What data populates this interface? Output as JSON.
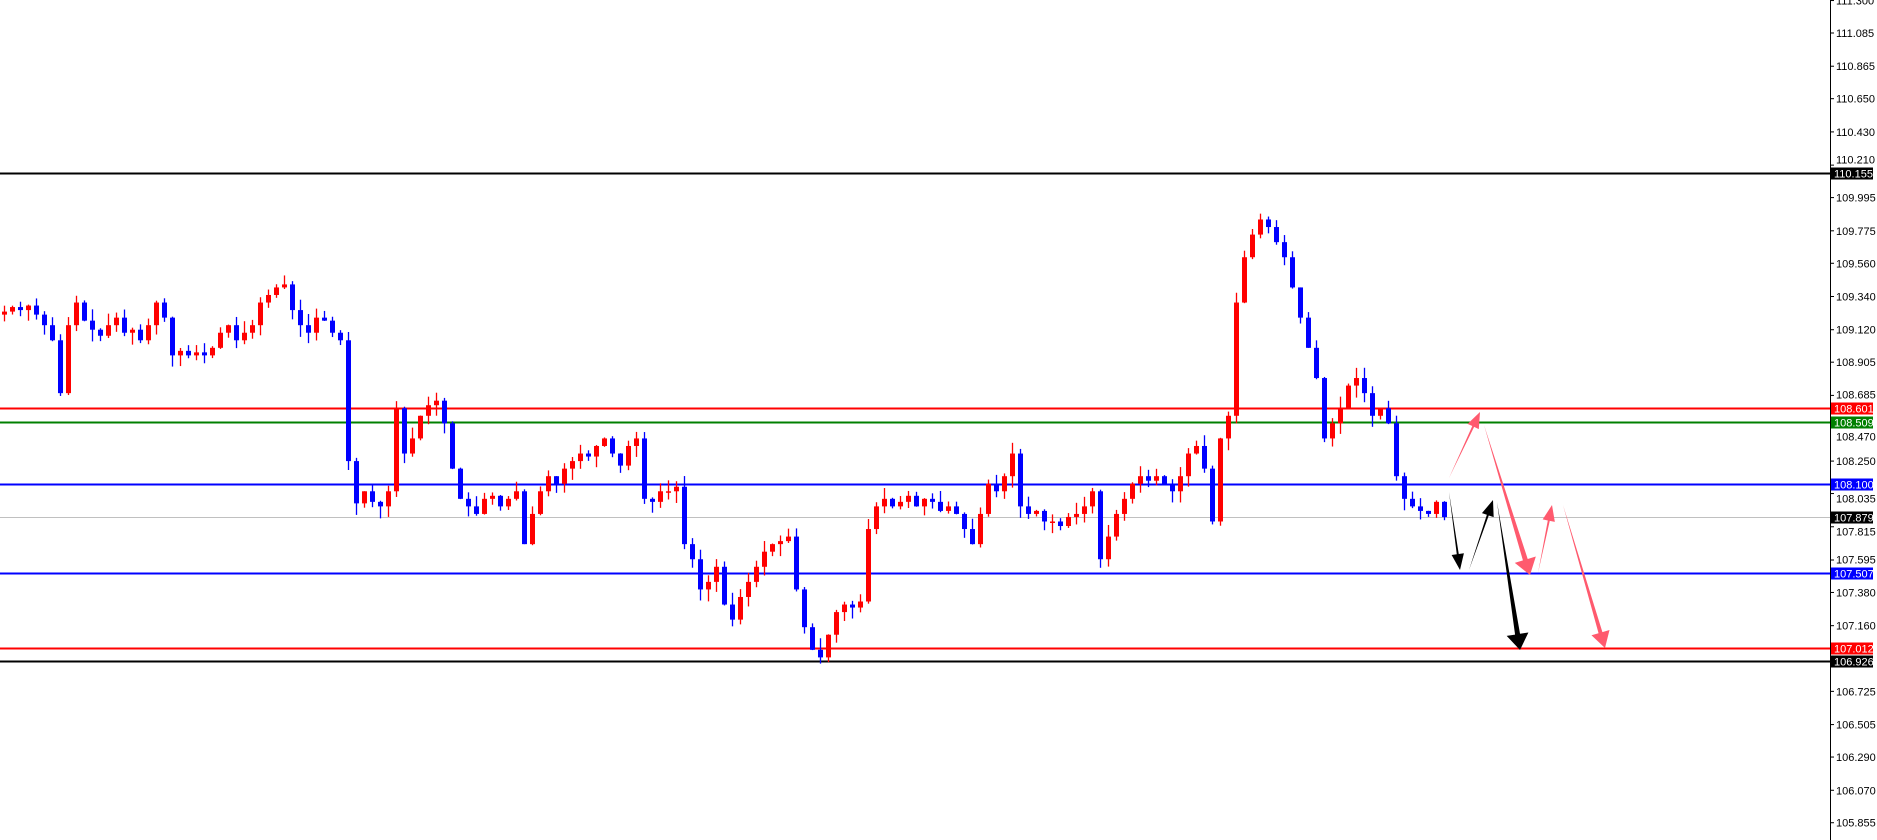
{
  "chart_data": {
    "type": "candlestick",
    "title": "",
    "colors": {
      "bull": "#ff0000",
      "bear": "#0000ff",
      "background": "#ffffff",
      "axis": "#000000"
    },
    "ylim": [
      105.75,
      111.3
    ],
    "y_ticks": [
      "111.300",
      "111.085",
      "110.865",
      "110.650",
      "110.430",
      "110.210",
      "109.995",
      "109.775",
      "109.560",
      "109.340",
      "109.120",
      "108.905",
      "108.685",
      "108.470",
      "108.250",
      "108.035",
      "107.815",
      "107.595",
      "107.380",
      "107.160",
      "106.725",
      "106.505",
      "106.290",
      "106.070",
      "105.855"
    ],
    "closes": [
      109.24,
      109.27,
      109.25,
      109.28,
      109.22,
      109.15,
      109.05,
      108.7,
      109.15,
      109.3,
      109.18,
      109.12,
      109.08,
      109.15,
      109.2,
      109.1,
      109.12,
      109.05,
      109.15,
      109.3,
      109.2,
      108.95,
      108.98,
      108.95,
      108.97,
      108.95,
      109.0,
      109.1,
      109.15,
      109.05,
      109.1,
      109.15,
      109.3,
      109.35,
      109.4,
      109.42,
      109.25,
      109.15,
      109.1,
      109.2,
      109.18,
      109.1,
      109.05,
      108.25,
      107.97,
      108.05,
      107.98,
      107.95,
      108.05,
      108.6,
      108.3,
      108.4,
      108.55,
      108.62,
      108.65,
      108.5,
      108.2,
      108.0,
      107.95,
      107.9,
      108.0,
      108.02,
      107.95,
      108.0,
      108.05,
      107.7,
      107.9,
      108.05,
      108.15,
      108.1,
      108.2,
      108.25,
      108.3,
      108.28,
      108.35,
      108.4,
      108.3,
      108.22,
      108.35,
      108.4,
      108.0,
      107.98,
      108.05,
      108.05,
      108.08,
      107.7,
      107.6,
      107.4,
      107.45,
      107.55,
      107.3,
      107.2,
      107.35,
      107.45,
      107.55,
      107.65,
      107.7,
      107.72,
      107.75,
      107.4,
      107.15,
      107.0,
      106.95,
      107.1,
      107.25,
      107.3,
      107.28,
      107.32,
      107.8,
      107.95,
      108.0,
      107.95,
      107.98,
      108.02,
      107.95,
      108.0,
      107.98,
      107.92,
      107.95,
      107.9,
      107.8,
      107.7,
      107.9,
      108.1,
      108.05,
      108.15,
      108.3,
      107.95,
      107.9,
      107.92,
      107.85,
      107.85,
      107.82,
      107.88,
      107.9,
      107.95,
      108.05,
      107.6,
      107.75,
      107.9,
      108.0,
      108.1,
      108.15,
      108.12,
      108.15,
      108.1,
      108.05,
      108.15,
      108.3,
      108.35,
      108.2,
      107.85,
      108.4,
      108.55,
      109.3,
      109.6,
      109.75,
      109.85,
      109.8,
      109.7,
      109.6,
      109.4,
      109.2,
      109.0,
      108.8,
      108.4,
      108.5,
      108.6,
      108.75,
      108.8,
      108.7,
      108.55,
      108.6,
      108.5,
      108.15,
      108.0,
      107.95,
      107.92,
      107.9,
      107.98,
      107.879
    ],
    "levels": [
      {
        "price": 110.155,
        "label": "110.155",
        "color": "#000000"
      },
      {
        "price": 108.601,
        "label": "108.601",
        "color": "#ff0000"
      },
      {
        "price": 108.509,
        "label": "108.509",
        "color": "#008000"
      },
      {
        "price": 108.1,
        "label": "108.100",
        "color": "#0000ff"
      },
      {
        "price": 107.879,
        "label": "107.879",
        "color": "#000000",
        "line_color": "#c0c0c0",
        "current": true
      },
      {
        "price": 107.507,
        "label": "107.507",
        "color": "#0000ff"
      },
      {
        "price": 107.012,
        "label": "107.012",
        "color": "#ff0000"
      },
      {
        "price": 106.926,
        "label": "106.926",
        "color": "#000000"
      }
    ],
    "arrow_colors": {
      "primary": "#000000",
      "alternative": "#ff5a6e"
    }
  }
}
